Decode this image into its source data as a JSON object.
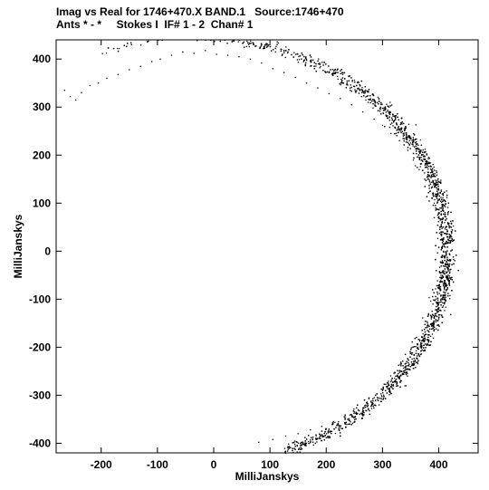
{
  "header": {
    "line1": "Imag vs Real for 1746+470.X BAND.1   Source:1746+470",
    "line2": "Ants * - *     Stokes I  IF# 1 - 2  Chan# 1"
  },
  "chart_data": {
    "type": "scatter",
    "title": "Imag vs Real for 1746+470.X BAND.1   Source:1746+470",
    "subtitle": "Ants * - *     Stokes I  IF# 1 - 2  Chan# 1",
    "xlabel": "MilliJanskys",
    "ylabel": "MilliJanskys",
    "xlim": [
      -280,
      470
    ],
    "ylim": [
      -420,
      440
    ],
    "xticks": [
      -200,
      -100,
      0,
      100,
      200,
      300,
      400
    ],
    "yticks": [
      -400,
      -300,
      -200,
      -100,
      0,
      100,
      200,
      300,
      400
    ],
    "grid": false,
    "legend": "none",
    "marker_color": "#000000",
    "series": [
      {
        "distribution": "ring",
        "center": [
          -30,
          0
        ],
        "radius": 445,
        "angle_range_deg": [
          -70,
          113
        ],
        "points": [
          [
            -265,
            335
          ],
          [
            -255,
            322
          ],
          [
            -245,
            315
          ],
          [
            -235,
            330
          ],
          [
            -220,
            345
          ],
          [
            -205,
            350
          ],
          [
            -190,
            360
          ],
          [
            -170,
            368
          ],
          [
            -150,
            378
          ],
          [
            -130,
            385
          ],
          [
            -110,
            395
          ],
          [
            -95,
            400
          ],
          [
            -75,
            408
          ],
          [
            -55,
            415
          ],
          [
            -35,
            412
          ],
          [
            -15,
            418
          ],
          [
            5,
            410
          ],
          [
            25,
            408
          ],
          [
            45,
            405
          ],
          [
            65,
            400
          ],
          [
            85,
            392
          ],
          [
            105,
            380
          ],
          [
            125,
            372
          ],
          [
            145,
            362
          ],
          [
            165,
            350
          ],
          [
            185,
            340
          ],
          [
            205,
            328
          ],
          [
            225,
            318
          ],
          [
            245,
            305
          ],
          [
            265,
            290
          ],
          [
            285,
            275
          ],
          [
            300,
            262
          ],
          [
            315,
            245
          ],
          [
            330,
            230
          ],
          [
            345,
            210
          ],
          [
            355,
            190
          ],
          [
            365,
            170
          ],
          [
            375,
            150
          ],
          [
            385,
            125
          ],
          [
            392,
            100
          ],
          [
            398,
            75
          ],
          [
            402,
            50
          ],
          [
            405,
            25
          ],
          [
            408,
            0
          ],
          [
            406,
            -25
          ],
          [
            404,
            -50
          ],
          [
            400,
            -75
          ],
          [
            395,
            -100
          ],
          [
            388,
            -125
          ],
          [
            380,
            -150
          ],
          [
            372,
            -172
          ],
          [
            362,
            -195
          ],
          [
            352,
            -215
          ],
          [
            340,
            -235
          ],
          [
            328,
            -255
          ],
          [
            315,
            -272
          ],
          [
            300,
            -290
          ],
          [
            285,
            -305
          ],
          [
            268,
            -322
          ],
          [
            250,
            -335
          ],
          [
            232,
            -345
          ],
          [
            212,
            -358
          ],
          [
            192,
            -365
          ],
          [
            172,
            -372
          ],
          [
            150,
            -380
          ],
          [
            128,
            -385
          ],
          [
            105,
            -392
          ],
          [
            80,
            -398
          ]
        ]
      }
    ]
  }
}
